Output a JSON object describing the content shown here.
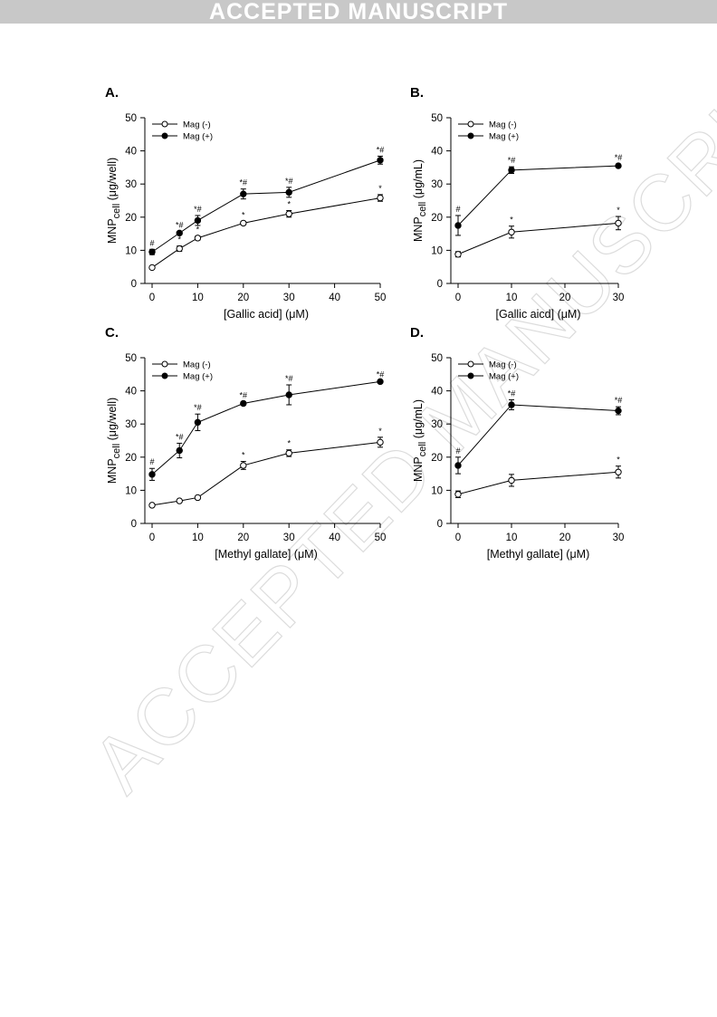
{
  "banner": {
    "text": "ACCEPTED MANUSCRIPT"
  },
  "watermark": {
    "text": "ACCEPTED MANUSCRIPT"
  },
  "chart_data": [
    {
      "panel": "A.",
      "type": "line",
      "xlabel": "[Gallic acid] (μM)",
      "ylabel": "MNPcell (μg/well)",
      "xlim": [
        0,
        50
      ],
      "ylim": [
        0,
        50
      ],
      "xticks": [
        0,
        10,
        20,
        30,
        40,
        50
      ],
      "yticks": [
        0,
        10,
        20,
        30,
        40,
        50
      ],
      "legend": "top-left",
      "series": [
        {
          "name": "Mag (-)",
          "marker": "open",
          "x": [
            0,
            6,
            10,
            20,
            30,
            50
          ],
          "y": [
            4.8,
            10.5,
            13.7,
            18.2,
            21.0,
            25.8
          ],
          "err": [
            0.3,
            0.8,
            0.6,
            0.5,
            1.0,
            1.0
          ],
          "annotations": [
            "",
            "*",
            "*",
            "*",
            "*",
            "*"
          ]
        },
        {
          "name": "Mag (+)",
          "marker": "filled",
          "x": [
            0,
            6,
            10,
            20,
            30,
            50
          ],
          "y": [
            9.5,
            15.2,
            19.0,
            27.0,
            27.5,
            37.2
          ],
          "err": [
            0.8,
            0.5,
            1.5,
            1.5,
            1.5,
            1.2
          ],
          "annotations": [
            "#",
            "*#",
            "*#",
            "*#",
            "*#",
            "*#"
          ]
        }
      ]
    },
    {
      "panel": "B.",
      "type": "line",
      "xlabel": "[Gallic aicd] (μM)",
      "ylabel": "MNPcell (μg/mL)",
      "xlim": [
        0,
        30
      ],
      "ylim": [
        0,
        50
      ],
      "xticks": [
        0,
        10,
        20,
        30
      ],
      "yticks": [
        0,
        10,
        20,
        30,
        40,
        50
      ],
      "legend": "top-left",
      "series": [
        {
          "name": "Mag (-)",
          "marker": "open",
          "x": [
            0,
            10,
            30
          ],
          "y": [
            8.8,
            15.5,
            18.2
          ],
          "err": [
            0.8,
            1.8,
            2.0
          ],
          "annotations": [
            "",
            "*",
            "*"
          ]
        },
        {
          "name": "Mag (+)",
          "marker": "filled",
          "x": [
            0,
            10,
            30
          ],
          "y": [
            17.5,
            34.2,
            35.5
          ],
          "err": [
            3.0,
            1.0,
            0.5
          ],
          "annotations": [
            "#",
            "*#",
            "*#"
          ]
        }
      ]
    },
    {
      "panel": "C.",
      "type": "line",
      "xlabel": "[Methyl gallate] (μM)",
      "ylabel": "MNPcell (μg/well)",
      "xlim": [
        0,
        50
      ],
      "ylim": [
        0,
        50
      ],
      "xticks": [
        0,
        10,
        20,
        30,
        40,
        50
      ],
      "yticks": [
        0,
        10,
        20,
        30,
        40,
        50
      ],
      "legend": "top-left",
      "series": [
        {
          "name": "Mag (-)",
          "marker": "open",
          "x": [
            0,
            6,
            10,
            20,
            30,
            50
          ],
          "y": [
            5.5,
            6.8,
            7.8,
            17.5,
            21.2,
            24.5
          ],
          "err": [
            0.3,
            0.4,
            0.5,
            1.2,
            1.0,
            1.5
          ],
          "annotations": [
            "",
            "",
            "",
            "*",
            "*",
            "*"
          ]
        },
        {
          "name": "Mag (+)",
          "marker": "filled",
          "x": [
            0,
            6,
            10,
            20,
            30,
            50
          ],
          "y": [
            14.8,
            22.0,
            30.5,
            36.2,
            38.8,
            42.8
          ],
          "err": [
            1.8,
            2.2,
            2.5,
            0.5,
            3.0,
            0.3
          ],
          "annotations": [
            "#",
            "*#",
            "*#",
            "*#",
            "*#",
            "*#"
          ]
        }
      ]
    },
    {
      "panel": "D.",
      "type": "line",
      "xlabel": "[Methyl gallate] (μM)",
      "ylabel": "MNPcell (μg/mL)",
      "xlim": [
        0,
        30
      ],
      "ylim": [
        0,
        50
      ],
      "xticks": [
        0,
        10,
        20,
        30
      ],
      "yticks": [
        0,
        10,
        20,
        30,
        40,
        50
      ],
      "legend": "top-left",
      "series": [
        {
          "name": "Mag (-)",
          "marker": "open",
          "x": [
            0,
            10,
            30
          ],
          "y": [
            8.8,
            13.0,
            15.5
          ],
          "err": [
            1.0,
            1.8,
            1.8
          ],
          "annotations": [
            "",
            "",
            "*"
          ]
        },
        {
          "name": "Mag (+)",
          "marker": "filled",
          "x": [
            0,
            10,
            30
          ],
          "y": [
            17.5,
            35.8,
            34.0
          ],
          "err": [
            2.5,
            1.5,
            1.2
          ],
          "annotations": [
            "#",
            "*#",
            "*#"
          ]
        }
      ]
    }
  ]
}
